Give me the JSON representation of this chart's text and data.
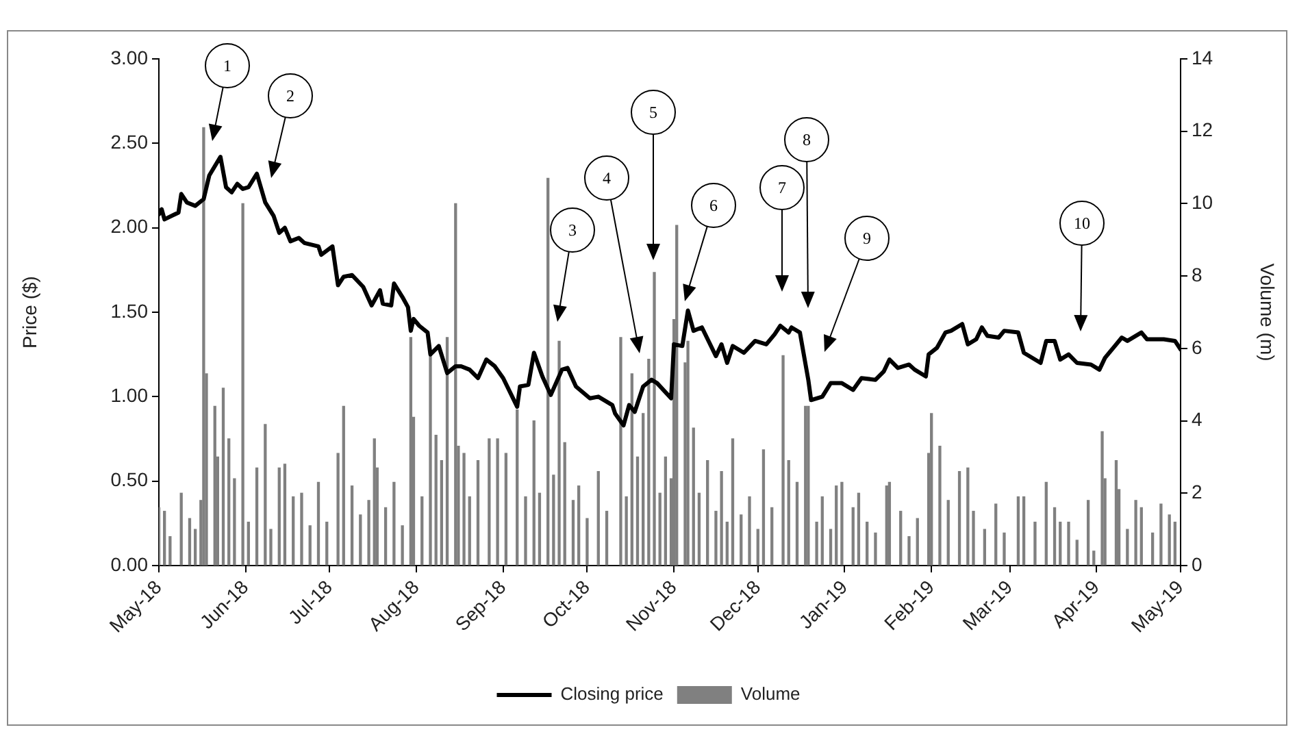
{
  "chart_data": {
    "type": "line",
    "xlim": [
      "2018-05-01",
      "2019-05-01"
    ],
    "xticks": [
      {
        "value": "2018-05-01",
        "label": "May-18"
      },
      {
        "value": "2018-06-01",
        "label": "Jun-18"
      },
      {
        "value": "2018-07-01",
        "label": "Jul-18"
      },
      {
        "value": "2018-08-01",
        "label": "Aug-18"
      },
      {
        "value": "2018-09-01",
        "label": "Sep-18"
      },
      {
        "value": "2018-10-01",
        "label": "Oct-18"
      },
      {
        "value": "2018-11-01",
        "label": "Nov-18"
      },
      {
        "value": "2018-12-01",
        "label": "Dec-18"
      },
      {
        "value": "2019-01-01",
        "label": "Jan-19"
      },
      {
        "value": "2019-02-01",
        "label": "Feb-19"
      },
      {
        "value": "2019-03-01",
        "label": "Mar-19"
      },
      {
        "value": "2019-04-01",
        "label": "Apr-19"
      },
      {
        "value": "2019-05-01",
        "label": "May-19"
      }
    ],
    "ylim": [
      0,
      3
    ],
    "yticks": [
      {
        "value": 0,
        "label": "0.00"
      },
      {
        "value": 0.5,
        "label": "0.50"
      },
      {
        "value": 1,
        "label": "1.00"
      },
      {
        "value": 1.5,
        "label": "1.50"
      },
      {
        "value": 2,
        "label": "2.00"
      },
      {
        "value": 2.5,
        "label": "2.50"
      },
      {
        "value": 3,
        "label": "3.00"
      }
    ],
    "y2lim": [
      0,
      14
    ],
    "y2ticks": [
      0,
      2,
      4,
      6,
      8,
      10,
      12,
      14
    ],
    "ylabel": "Price ($)",
    "y2label": "Volume (m)",
    "legend": "bottom",
    "annotations": [
      "1",
      "2",
      "3",
      "4",
      "5",
      "6",
      "7",
      "8",
      "9",
      "10"
    ],
    "series": [
      {
        "name": "Volume",
        "type": "bar",
        "axis": "y2",
        "color": "#808080",
        "x": [
          "2018-05-01",
          "2018-05-03",
          "2018-05-05",
          "2018-05-09",
          "2018-05-12",
          "2018-05-14",
          "2018-05-16",
          "2018-05-17",
          "2018-05-18",
          "2018-05-21",
          "2018-05-22",
          "2018-05-24",
          "2018-05-26",
          "2018-05-28",
          "2018-05-31",
          "2018-06-02",
          "2018-06-05",
          "2018-06-08",
          "2018-06-10",
          "2018-06-13",
          "2018-06-15",
          "2018-06-18",
          "2018-06-21",
          "2018-06-24",
          "2018-06-27",
          "2018-06-30",
          "2018-07-04",
          "2018-07-06",
          "2018-07-09",
          "2018-07-12",
          "2018-07-15",
          "2018-07-17",
          "2018-07-18",
          "2018-07-21",
          "2018-07-24",
          "2018-07-27",
          "2018-07-30",
          "2018-07-31",
          "2018-08-03",
          "2018-08-06",
          "2018-08-08",
          "2018-08-10",
          "2018-08-12",
          "2018-08-15",
          "2018-08-16",
          "2018-08-18",
          "2018-08-20",
          "2018-08-23",
          "2018-08-27",
          "2018-08-30",
          "2018-09-02",
          "2018-09-06",
          "2018-09-09",
          "2018-09-12",
          "2018-09-14",
          "2018-09-17",
          "2018-09-19",
          "2018-09-21",
          "2018-09-23",
          "2018-09-26",
          "2018-09-28",
          "2018-10-01",
          "2018-10-05",
          "2018-10-08",
          "2018-10-13",
          "2018-10-15",
          "2018-10-17",
          "2018-10-19",
          "2018-10-21",
          "2018-10-23",
          "2018-10-25",
          "2018-10-27",
          "2018-10-29",
          "2018-10-31",
          "2018-11-01",
          "2018-11-02",
          "2018-11-05",
          "2018-11-06",
          "2018-11-08",
          "2018-11-10",
          "2018-11-13",
          "2018-11-16",
          "2018-11-18",
          "2018-11-20",
          "2018-11-22",
          "2018-11-25",
          "2018-11-28",
          "2018-12-01",
          "2018-12-03",
          "2018-12-06",
          "2018-12-10",
          "2018-12-12",
          "2018-12-15",
          "2018-12-18",
          "2018-12-19",
          "2018-12-22",
          "2018-12-24",
          "2018-12-27",
          "2018-12-29",
          "2018-12-31",
          "2019-01-04",
          "2019-01-06",
          "2019-01-09",
          "2019-01-12",
          "2019-01-16",
          "2019-01-17",
          "2019-01-21",
          "2019-01-24",
          "2019-01-27",
          "2019-01-31",
          "2019-02-01",
          "2019-02-04",
          "2019-02-07",
          "2019-02-11",
          "2019-02-14",
          "2019-02-16",
          "2019-02-20",
          "2019-02-24",
          "2019-02-27",
          "2019-03-04",
          "2019-03-06",
          "2019-03-10",
          "2019-03-14",
          "2019-03-17",
          "2019-03-19",
          "2019-03-22",
          "2019-03-25",
          "2019-03-29",
          "2019-03-31",
          "2019-04-03",
          "2019-04-04",
          "2019-04-08",
          "2019-04-09",
          "2019-04-12",
          "2019-04-15",
          "2019-04-17",
          "2019-04-21",
          "2019-04-24",
          "2019-04-27",
          "2019-04-29"
        ],
        "values": [
          1.6,
          1.5,
          0.8,
          2.0,
          1.3,
          1.0,
          1.8,
          12.1,
          5.3,
          4.4,
          3.0,
          4.9,
          3.5,
          2.4,
          10.0,
          1.2,
          2.7,
          3.9,
          1.0,
          2.7,
          2.8,
          1.9,
          2.0,
          1.1,
          2.3,
          1.2,
          3.1,
          4.4,
          2.2,
          1.4,
          1.8,
          3.5,
          2.7,
          1.6,
          2.3,
          1.1,
          6.3,
          4.1,
          1.9,
          5.8,
          3.6,
          2.9,
          6.3,
          10.0,
          3.3,
          3.1,
          1.9,
          2.9,
          3.5,
          3.5,
          3.1,
          4.3,
          1.9,
          4.0,
          2.0,
          10.7,
          2.5,
          6.2,
          3.4,
          1.8,
          2.2,
          1.3,
          2.6,
          1.5,
          6.3,
          1.9,
          5.3,
          3.0,
          4.2,
          5.7,
          8.1,
          2.0,
          3.0,
          2.4,
          6.8,
          9.4,
          5.6,
          6.2,
          3.8,
          2.0,
          2.9,
          1.5,
          2.6,
          1.2,
          3.5,
          1.4,
          1.9,
          1.0,
          3.2,
          1.6,
          5.8,
          2.9,
          2.3,
          4.4,
          4.4,
          1.2,
          1.9,
          1.0,
          2.2,
          2.3,
          1.6,
          2.0,
          1.2,
          0.9,
          2.2,
          2.3,
          1.5,
          0.8,
          1.3,
          3.1,
          4.2,
          3.3,
          1.8,
          2.6,
          2.7,
          1.5,
          1.0,
          1.7,
          0.9,
          1.9,
          1.9,
          1.2,
          2.3,
          1.6,
          1.2,
          1.2,
          0.7,
          1.8,
          0.4,
          3.7,
          2.4,
          2.9,
          2.1,
          1.0,
          1.8,
          1.6,
          0.9,
          1.7,
          1.4,
          1.2
        ]
      },
      {
        "name": "Closing price",
        "color": "#000000",
        "x": [
          "2018-05-01",
          "2018-05-02",
          "2018-05-03",
          "2018-05-08",
          "2018-05-09",
          "2018-05-11",
          "2018-05-14",
          "2018-05-17",
          "2018-05-19",
          "2018-05-23",
          "2018-05-25",
          "2018-05-27",
          "2018-05-29",
          "2018-05-31",
          "2018-06-02",
          "2018-06-05",
          "2018-06-08",
          "2018-06-11",
          "2018-06-13",
          "2018-06-15",
          "2018-06-17",
          "2018-06-20",
          "2018-06-22",
          "2018-06-27",
          "2018-06-28",
          "2018-07-02",
          "2018-07-04",
          "2018-07-06",
          "2018-07-09",
          "2018-07-13",
          "2018-07-16",
          "2018-07-19",
          "2018-07-20",
          "2018-07-23",
          "2018-07-24",
          "2018-07-27",
          "2018-07-29",
          "2018-07-30",
          "2018-07-31",
          "2018-08-02",
          "2018-08-05",
          "2018-08-06",
          "2018-08-09",
          "2018-08-12",
          "2018-08-15",
          "2018-08-17",
          "2018-08-20",
          "2018-08-23",
          "2018-08-26",
          "2018-08-29",
          "2018-09-01",
          "2018-09-06",
          "2018-09-07",
          "2018-09-10",
          "2018-09-12",
          "2018-09-15",
          "2018-09-18",
          "2018-09-22",
          "2018-09-24",
          "2018-09-27",
          "2018-10-02",
          "2018-10-05",
          "2018-10-10",
          "2018-10-11",
          "2018-10-14",
          "2018-10-16",
          "2018-10-18",
          "2018-10-21",
          "2018-10-24",
          "2018-10-26",
          "2018-10-31",
          "2018-11-01",
          "2018-11-04",
          "2018-11-06",
          "2018-11-08",
          "2018-11-11",
          "2018-11-16",
          "2018-11-18",
          "2018-11-20",
          "2018-11-22",
          "2018-11-26",
          "2018-11-30",
          "2018-12-04",
          "2018-12-07",
          "2018-12-09",
          "2018-12-12",
          "2018-12-13",
          "2018-12-16",
          "2018-12-19",
          "2018-12-20",
          "2018-12-24",
          "2018-12-27",
          "2018-12-31",
          "2019-01-04",
          "2019-01-07",
          "2019-01-12",
          "2019-01-15",
          "2019-01-17",
          "2019-01-20",
          "2019-01-24",
          "2019-01-26",
          "2019-01-30",
          "2019-01-31",
          "2019-02-03",
          "2019-02-06",
          "2019-02-08",
          "2019-02-12",
          "2019-02-14",
          "2019-02-17",
          "2019-02-19",
          "2019-02-21",
          "2019-02-25",
          "2019-02-27",
          "2019-03-04",
          "2019-03-06",
          "2019-03-12",
          "2019-03-14",
          "2019-03-17",
          "2019-03-19",
          "2019-03-22",
          "2019-03-25",
          "2019-03-30",
          "2019-04-02",
          "2019-04-04",
          "2019-04-07",
          "2019-04-10",
          "2019-04-12",
          "2019-04-17",
          "2019-04-19",
          "2019-04-25",
          "2019-04-29",
          "2019-05-01"
        ],
        "values": [
          2.08,
          2.11,
          2.05,
          2.09,
          2.2,
          2.15,
          2.13,
          2.17,
          2.31,
          2.42,
          2.24,
          2.21,
          2.26,
          2.23,
          2.24,
          2.32,
          2.15,
          2.07,
          1.97,
          2.0,
          1.92,
          1.94,
          1.91,
          1.89,
          1.84,
          1.89,
          1.66,
          1.71,
          1.72,
          1.65,
          1.54,
          1.63,
          1.55,
          1.54,
          1.67,
          1.59,
          1.53,
          1.39,
          1.46,
          1.42,
          1.38,
          1.25,
          1.3,
          1.14,
          1.18,
          1.18,
          1.16,
          1.11,
          1.22,
          1.18,
          1.11,
          0.94,
          1.06,
          1.07,
          1.26,
          1.12,
          1.01,
          1.16,
          1.17,
          1.06,
          0.99,
          1.0,
          0.95,
          0.9,
          0.83,
          0.95,
          0.91,
          1.06,
          1.1,
          1.08,
          0.99,
          1.31,
          1.3,
          1.51,
          1.39,
          1.41,
          1.24,
          1.31,
          1.2,
          1.3,
          1.26,
          1.33,
          1.31,
          1.37,
          1.42,
          1.38,
          1.41,
          1.38,
          1.1,
          0.98,
          1.0,
          1.08,
          1.08,
          1.04,
          1.11,
          1.1,
          1.15,
          1.22,
          1.17,
          1.19,
          1.16,
          1.12,
          1.25,
          1.29,
          1.38,
          1.39,
          1.43,
          1.31,
          1.34,
          1.41,
          1.36,
          1.35,
          1.39,
          1.38,
          1.26,
          1.2,
          1.33,
          1.33,
          1.22,
          1.25,
          1.2,
          1.19,
          1.16,
          1.23,
          1.29,
          1.35,
          1.33,
          1.38,
          1.34,
          1.34,
          1.33,
          1.28
        ]
      }
    ]
  }
}
